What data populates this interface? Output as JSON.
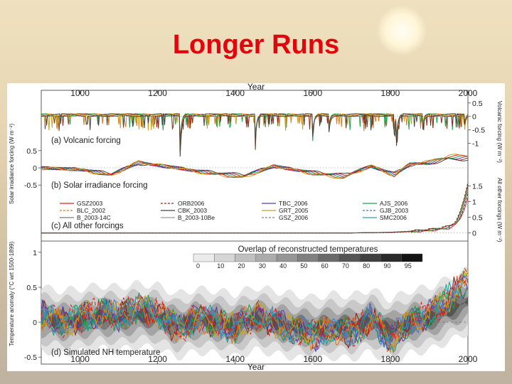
{
  "slide": {
    "title": "Longer Runs"
  },
  "chart_data": {
    "type": "line",
    "x_axis": {
      "label": "Year",
      "range": [
        900,
        2000
      ],
      "ticks": [
        "1000",
        "1200",
        "1400",
        "1600",
        "1800",
        "2000"
      ]
    },
    "panels": [
      {
        "id": "a",
        "label": "(a) Volcanic forcing",
        "ylabel_right": "Volcanic forcing (W m⁻²)",
        "ylim": [
          -1.3,
          0.6
        ],
        "y_ticks": [
          "0.5",
          "0",
          "-0.5",
          "-1"
        ],
        "volcanic_events": [
          {
            "year": 1258,
            "value": -1.25
          },
          {
            "year": 1452,
            "value": -0.9
          },
          {
            "year": 1600,
            "value": -0.7
          },
          {
            "year": 1641,
            "value": -0.65
          },
          {
            "year": 1809,
            "value": -0.8
          },
          {
            "year": 1815,
            "value": -1.15
          },
          {
            "year": 1883,
            "value": -0.55
          },
          {
            "year": 1991,
            "value": -0.4
          }
        ]
      },
      {
        "id": "b",
        "label": "(b) Solar irradiance forcing",
        "ylabel_left": "Solar irradiance forcing (W m⁻²)",
        "ylim": [
          -0.6,
          0.6
        ],
        "y_ticks": [
          "0.5",
          "0",
          "-0.5"
        ],
        "x": [
          900,
          1000,
          1080,
          1150,
          1250,
          1300,
          1420,
          1500,
          1600,
          1680,
          1750,
          1810,
          1850,
          1900,
          1950,
          2000
        ],
        "values": [
          0.0,
          -0.05,
          -0.2,
          0.15,
          0.0,
          -0.1,
          -0.25,
          0.05,
          -0.15,
          -0.25,
          0.05,
          -0.2,
          0.1,
          0.15,
          0.3,
          0.3
        ]
      },
      {
        "id": "c",
        "label": "(c) All other forcings",
        "ylabel_right": "All other forcings (W m⁻²)",
        "ylim": [
          -0.1,
          1.6
        ],
        "y_ticks": [
          "1.5",
          "1",
          "0.5",
          "0"
        ],
        "x": [
          900,
          1500,
          1700,
          1800,
          1850,
          1900,
          1930,
          1950,
          1970,
          1980,
          1990,
          2000
        ],
        "values": [
          0.0,
          0.0,
          0.0,
          0.02,
          0.05,
          0.1,
          0.15,
          0.2,
          0.35,
          0.6,
          1.0,
          1.5
        ]
      },
      {
        "id": "d",
        "label": "(d) Simulated NH temperature",
        "ylabel_left": "Temperature anomaly (°C wrt 1500-1899)",
        "ylim": [
          -0.6,
          1.1
        ],
        "y_ticks": [
          "1",
          "0.5",
          "0",
          "-0.5"
        ],
        "overlay_title": "Overlap of reconstructed temperatures",
        "overlay_scale": [
          "0",
          "10",
          "20",
          "30",
          "40",
          "50",
          "60",
          "70",
          "80",
          "90",
          "95"
        ],
        "x": [
          900,
          950,
          1000,
          1050,
          1100,
          1150,
          1200,
          1250,
          1300,
          1350,
          1400,
          1450,
          1500,
          1550,
          1600,
          1650,
          1700,
          1750,
          1800,
          1850,
          1900,
          1950,
          2000
        ],
        "series_mean": [
          0.1,
          0.0,
          0.05,
          0.15,
          0.1,
          0.2,
          0.15,
          -0.1,
          0.05,
          0.0,
          -0.1,
          0.1,
          0.0,
          -0.1,
          -0.2,
          -0.1,
          -0.15,
          0.05,
          -0.25,
          0.0,
          0.1,
          0.35,
          0.6
        ]
      }
    ],
    "legend": [
      "GSZ2003",
      "ORB2006",
      "TBC_2006",
      "AJS_2006",
      "BLC_2002",
      "CBK_2003",
      "GRT_2005",
      "GJB_2003",
      "B_2003-14C",
      "B_2003-10Be",
      "GSZ_2006",
      "SMC2006"
    ],
    "colors": {
      "GSZ2003": "#e02020",
      "ORB2006": "#8a2a1a",
      "TBC_2006": "#5a3ab0",
      "AJS_2006": "#1aa04a",
      "BLC_2002": "#e07a1a",
      "CBK_2003": "#444444",
      "GRT_2005": "#c8a020",
      "GJB_2003": "#3b7fcb",
      "B_2003-14C": "#777777",
      "B_2003-10Be": "#999999",
      "GSZ_2006": "#888888",
      "SMC2006": "#2aa0a0"
    }
  }
}
